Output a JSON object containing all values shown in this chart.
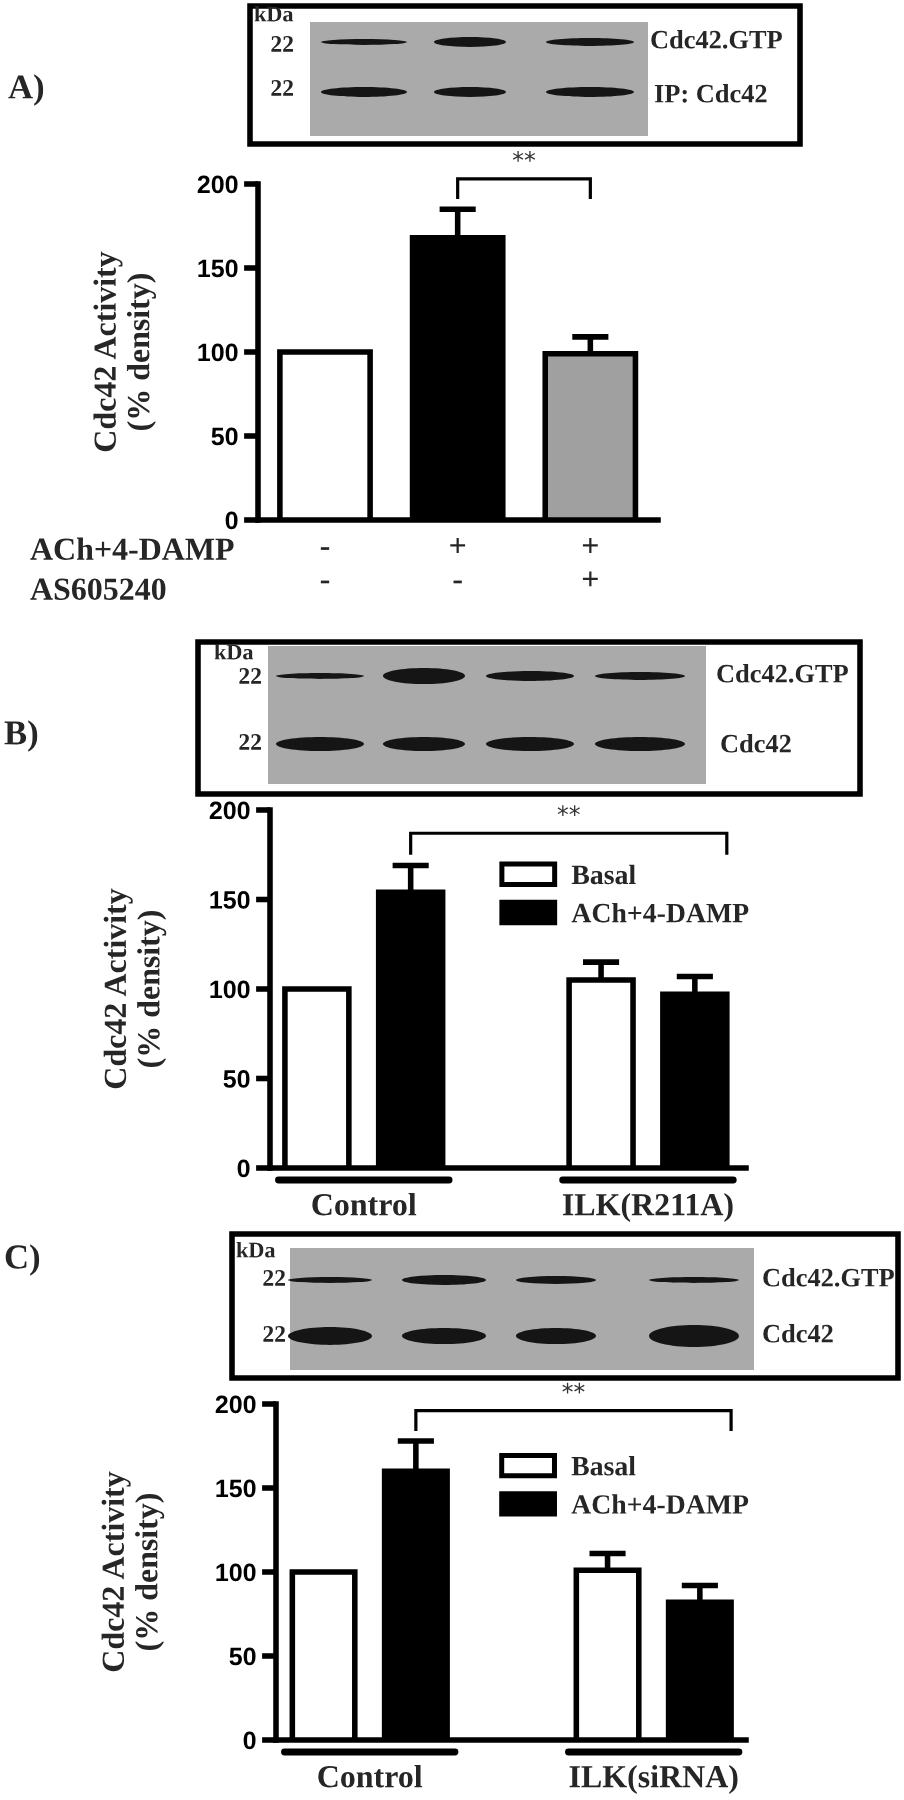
{
  "chart_data": [
    {
      "type": "bar",
      "title": "A)",
      "ylabel": "Cdc42 Activity\n(% density)",
      "categories": [
        "-\n-",
        "+\n-",
        "+\n+"
      ],
      "values": [
        100,
        168,
        99
      ],
      "errors": [
        null,
        17,
        10
      ],
      "colors": [
        "#ffffff",
        "#000000",
        "#a0a0a0"
      ],
      "ylim": [
        0,
        200
      ],
      "yticks": [
        0,
        50,
        100,
        150,
        200
      ],
      "annotations": [
        "kDa",
        "22",
        "22",
        "Cdc42.GTP",
        "IP: Cdc42",
        "**",
        "ACh+4-DAMP",
        "AS605240"
      ]
    },
    {
      "type": "bar",
      "title": "B)",
      "ylabel": "Cdc42 Activity\n(% density)",
      "categories": [
        "Control",
        "ILK(R211A)"
      ],
      "series": [
        {
          "name": "Basal",
          "color": "#ffffff",
          "values": [
            100,
            105
          ],
          "errors": [
            null,
            10
          ]
        },
        {
          "name": "ACh+4-DAMP",
          "color": "#000000",
          "values": [
            154,
            97
          ],
          "errors": [
            15,
            10
          ]
        }
      ],
      "ylim": [
        0,
        200
      ],
      "yticks": [
        0,
        50,
        100,
        150,
        200
      ],
      "legend": "top right",
      "annotations": [
        "kDa",
        "22",
        "22",
        "Cdc42.GTP",
        "Cdc42",
        "**"
      ]
    },
    {
      "type": "bar",
      "title": "C)",
      "ylabel": "Cdc42 Activity\n(% density)",
      "categories": [
        "Control",
        "ILK(siRNA)"
      ],
      "series": [
        {
          "name": "Basal",
          "color": "#ffffff",
          "values": [
            100,
            101
          ],
          "errors": [
            null,
            10
          ]
        },
        {
          "name": "ACh+4-DAMP",
          "color": "#000000",
          "values": [
            160,
            82
          ],
          "errors": [
            18,
            10
          ]
        }
      ],
      "ylim": [
        0,
        200
      ],
      "yticks": [
        0,
        50,
        100,
        150,
        200
      ],
      "legend": "top right",
      "annotations": [
        "kDa",
        "22",
        "22",
        "Cdc42.GTP",
        "Cdc42",
        "**"
      ]
    }
  ]
}
